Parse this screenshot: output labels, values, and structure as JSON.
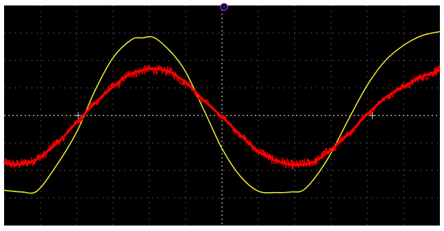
{
  "trigger": {
    "marker_text": "T",
    "marker_color": "#9b30ff"
  },
  "colors": {
    "background": "#000000",
    "grid": "#9a9a9a",
    "center_axis": "#d8d8d8",
    "yellow_trace": "#f2ee2c",
    "red_trace": "#ff0000"
  },
  "chart_data": {
    "type": "line",
    "title": "",
    "xlabel": "",
    "ylabel": "",
    "x_divisions": 12,
    "y_divisions": 8,
    "grid": true,
    "xlim": [
      0,
      12
    ],
    "ylim": [
      -4,
      4
    ],
    "series": [
      {
        "color": "#f2ee2c",
        "noise": 0,
        "x": [
          0,
          0.5,
          0.9,
          1.4,
          2.0,
          2.5,
          3.0,
          3.5,
          3.8,
          4.2,
          4.9,
          5.5,
          6.0,
          6.5,
          7.0,
          7.5,
          7.9,
          8.3,
          8.9,
          9.5,
          10.0,
          10.5,
          11.0,
          11.5,
          12.0
        ],
        "y": [
          -2.72,
          -2.78,
          -2.75,
          -1.9,
          -0.6,
          0.9,
          2.1,
          2.75,
          2.82,
          2.78,
          1.8,
          0.2,
          -1.2,
          -2.2,
          -2.75,
          -2.8,
          -2.78,
          -2.65,
          -1.6,
          -0.1,
          1.1,
          2.0,
          2.55,
          2.9,
          3.05
        ]
      },
      {
        "color": "#ff0000",
        "noise": 0.18,
        "x": [
          0,
          0.3,
          0.7,
          1.0,
          1.5,
          2.0,
          2.5,
          3.0,
          3.5,
          4.0,
          4.5,
          5.0,
          5.5,
          6.0,
          6.5,
          7.0,
          7.5,
          8.0,
          8.5,
          9.0,
          9.5,
          10.0,
          10.5,
          11.0,
          11.5,
          12.0
        ],
        "y": [
          -1.72,
          -1.78,
          -1.7,
          -1.5,
          -0.95,
          -0.25,
          0.45,
          1.05,
          1.52,
          1.68,
          1.62,
          1.2,
          0.55,
          -0.05,
          -0.7,
          -1.3,
          -1.65,
          -1.8,
          -1.7,
          -1.25,
          -0.65,
          0.05,
          0.65,
          1.05,
          1.4,
          1.65
        ]
      }
    ]
  }
}
